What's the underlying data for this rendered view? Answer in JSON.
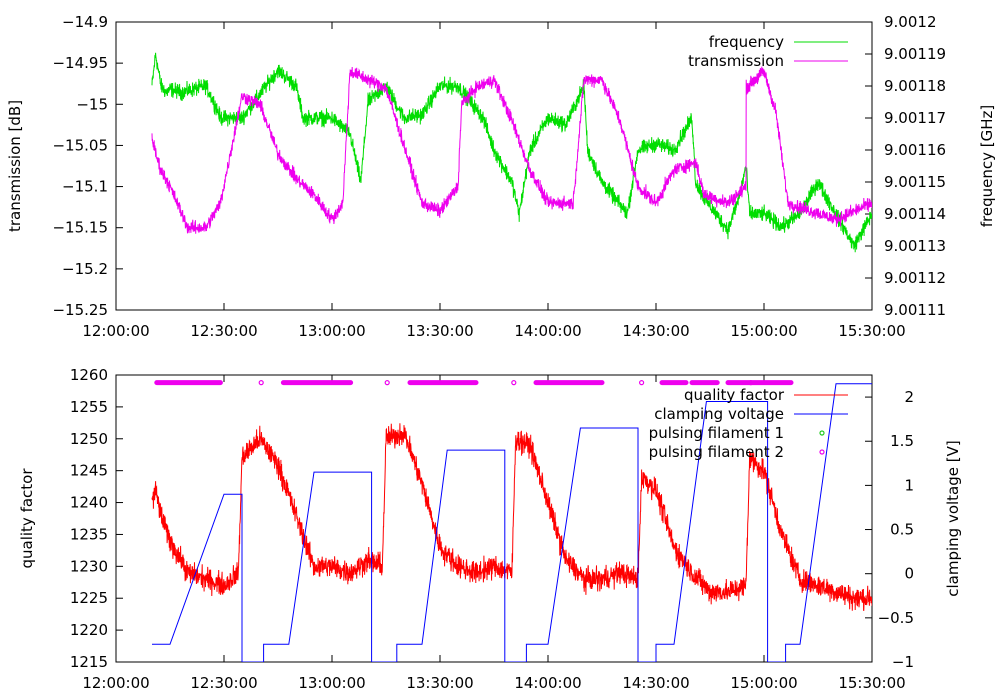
{
  "colors": {
    "frequency": "#00dd00",
    "transmission": "#ee00ee",
    "quality_factor": "#ff0000",
    "clamping_voltage": "#0000ff",
    "pulsing_filament_1": "#22cc22",
    "pulsing_filament_2": "#ee00ee"
  },
  "chart_data": [
    {
      "type": "line",
      "panel": "top",
      "ylabel": "transmission [dB]",
      "y2label": "frequency [GHz]",
      "xlim_seconds": [
        43200,
        55800
      ],
      "xticks": [
        "12:00:00",
        "12:30:00",
        "13:00:00",
        "13:30:00",
        "14:00:00",
        "14:30:00",
        "15:00:00",
        "15:30:00"
      ],
      "ylim": [
        -15.25,
        -14.9
      ],
      "yticks": [
        "-15.25",
        "-15.2",
        "-15.15",
        "-15.1",
        "-15.05",
        "-15",
        "-14.95",
        "-14.9"
      ],
      "y2lim": [
        9.00111,
        9.0012
      ],
      "y2ticks": [
        "9.00111",
        "9.00112",
        "9.00113",
        "9.00114",
        "9.00115",
        "9.00116",
        "9.00117",
        "9.00118",
        "9.00119",
        "9.0012"
      ],
      "legend_position": "top-right",
      "series": [
        {
          "name": "frequency",
          "axis": "y2",
          "noise": 3.5e-06,
          "x": [
            43800,
            43860,
            43950,
            44040,
            44100,
            44300,
            44700,
            44880,
            44940,
            45000,
            45300,
            45900,
            46200,
            46320,
            46500,
            46800,
            47100,
            47280,
            47400,
            47700,
            48000,
            48300,
            48600,
            48900,
            49320,
            49500,
            49800,
            49920,
            50100,
            50400,
            50700,
            51000,
            51060,
            51300,
            51720,
            51900,
            52200,
            52500,
            52800,
            52860,
            53000,
            53400,
            53580,
            53700,
            53760,
            54000,
            54300,
            54600,
            54900,
            55200,
            55500,
            55800
          ],
          "y": [
            9.00118,
            9.00119,
            9.00118,
            9.001178,
            9.001179,
            9.001178,
            9.00118,
            9.001173,
            9.00117,
            9.00117,
            9.00117,
            9.001185,
            9.00118,
            9.00117,
            9.00117,
            9.00117,
            9.001165,
            9.00115,
            9.001175,
            9.00118,
            9.00117,
            9.001171,
            9.00118,
            9.00118,
            9.00117,
            9.00116,
            9.00115,
            9.00114,
            9.00116,
            9.00117,
            9.001168,
            9.00118,
            9.00116,
            9.00115,
            9.00114,
            9.00116,
            9.001162,
            9.00116,
            9.00117,
            9.00115,
            9.001145,
            9.001135,
            9.001145,
            9.001155,
            9.00114,
            9.00114,
            9.001136,
            9.00114,
            9.00115,
            9.00114,
            9.00113,
            9.00114
          ]
        },
        {
          "name": "transmission",
          "axis": "y1",
          "noise": 0.012,
          "x": [
            43800,
            43860,
            43950,
            44100,
            44400,
            44700,
            44940,
            45300,
            45600,
            45900,
            46200,
            46500,
            46800,
            46980,
            47100,
            47700,
            48300,
            48600,
            48900,
            48960,
            49200,
            49500,
            49800,
            50100,
            50400,
            50820,
            51000,
            51300,
            51600,
            51900,
            52200,
            52500,
            52860,
            53000,
            53400,
            53700,
            53700,
            54000,
            54200,
            54400,
            54800,
            55200,
            55500,
            55800
          ],
          "y": [
            -15.04,
            -15.06,
            -15.08,
            -15.1,
            -15.15,
            -15.15,
            -15.12,
            -14.99,
            -15.0,
            -15.06,
            -15.09,
            -15.11,
            -15.14,
            -15.12,
            -14.96,
            -14.98,
            -15.12,
            -15.13,
            -15.1,
            -15.0,
            -14.98,
            -14.97,
            -15.02,
            -15.08,
            -15.12,
            -15.12,
            -14.97,
            -14.97,
            -15.02,
            -15.1,
            -15.12,
            -15.08,
            -15.07,
            -15.11,
            -15.12,
            -15.1,
            -14.98,
            -14.96,
            -15.01,
            -15.12,
            -15.13,
            -15.14,
            -15.13,
            -15.12
          ]
        }
      ]
    },
    {
      "type": "line",
      "panel": "bottom",
      "ylabel": "quality factor",
      "y2label": "clamping voltage [V]",
      "xlim_seconds": [
        43200,
        55800
      ],
      "xticks": [
        "12:00:00",
        "12:30:00",
        "13:00:00",
        "13:30:00",
        "14:00:00",
        "14:30:00",
        "15:00:00",
        "15:30:00"
      ],
      "ylim": [
        1215,
        1260
      ],
      "yticks": [
        "1215",
        "1220",
        "1225",
        "1230",
        "1235",
        "1240",
        "1245",
        "1250",
        "1255",
        "1260"
      ],
      "y2lim": [
        -1,
        2.25
      ],
      "y2ticks": [
        "-1",
        "-0.5",
        "0",
        "0.5",
        "1",
        "1.5",
        "2"
      ],
      "legend_position": "top-right",
      "series": [
        {
          "name": "quality factor",
          "axis": "y1",
          "noise": 2.6,
          "x": [
            43800,
            43860,
            43950,
            44100,
            44400,
            44700,
            45000,
            45240,
            45300,
            45600,
            45900,
            46200,
            46500,
            46800,
            47100,
            47400,
            47640,
            47700,
            48000,
            48300,
            48600,
            48900,
            49200,
            49500,
            49800,
            49860,
            50100,
            50400,
            50700,
            51000,
            51300,
            51600,
            51900,
            51960,
            52200,
            52500,
            52800,
            53100,
            53400,
            53700,
            53760,
            54000,
            54300,
            54600,
            54900,
            55200,
            55500,
            55800
          ],
          "y": [
            1240,
            1242,
            1238,
            1234,
            1229,
            1228,
            1227,
            1229,
            1247,
            1250,
            1246,
            1238,
            1230,
            1230,
            1229,
            1231,
            1230,
            1250,
            1251,
            1243,
            1233,
            1230,
            1229,
            1230,
            1229,
            1250,
            1249,
            1240,
            1231,
            1228,
            1228,
            1229,
            1228,
            1244,
            1242,
            1233,
            1229,
            1226,
            1226,
            1227,
            1247,
            1245,
            1235,
            1228,
            1227,
            1226,
            1225,
            1225
          ]
        },
        {
          "name": "clamping voltage",
          "axis": "y2",
          "noise": 0,
          "x": [
            43800,
            44100,
            45000,
            45240,
            45240,
            45300,
            45300,
            45660,
            45660,
            45720,
            46080,
            46500,
            47100,
            47400,
            47400,
            47460,
            47460,
            47880,
            47880,
            47940,
            48300,
            48720,
            49500,
            49620,
            49620,
            49680,
            49680,
            50040,
            50040,
            50100,
            50400,
            50940,
            51600,
            51840,
            51840,
            51900,
            51900,
            52200,
            52200,
            52260,
            52500,
            53040,
            53700,
            54000,
            54000,
            54060,
            54060,
            54360,
            54360,
            54420,
            54600,
            55200,
            55800
          ],
          "y": [
            -0.8,
            -0.8,
            0.9,
            0.9,
            0.9,
            0.9,
            -1,
            -1,
            -0.8,
            -0.8,
            -0.8,
            1.15,
            1.15,
            1.15,
            1.15,
            1.15,
            -1,
            -1,
            -0.8,
            -0.8,
            -0.8,
            1.4,
            1.4,
            1.4,
            1.4,
            1.4,
            -1,
            -1,
            -0.8,
            -0.8,
            -0.8,
            1.65,
            1.65,
            1.65,
            1.65,
            1.65,
            -1,
            -1,
            -0.8,
            -0.8,
            -0.8,
            1.95,
            1.95,
            1.95,
            1.95,
            1.95,
            -1,
            -1,
            -0.8,
            -0.8,
            -0.8,
            2.15,
            2.15
          ]
        },
        {
          "name": "pulsing filament 1",
          "axis": "y1",
          "noise": 0,
          "x": [],
          "y": []
        },
        {
          "name": "pulsing filament 2",
          "axis": "y1",
          "noise": 0,
          "level": 1258.8,
          "segments": [
            [
              43880,
              44940
            ],
            [
              45990,
              47110
            ],
            [
              48100,
              49200
            ],
            [
              50200,
              51300
            ],
            [
              52300,
              52700
            ],
            [
              52800,
              53220
            ],
            [
              53400,
              54450
            ]
          ],
          "isolated_points": [
            45620,
            47720,
            49830,
            51960,
            53780
          ]
        }
      ]
    }
  ]
}
